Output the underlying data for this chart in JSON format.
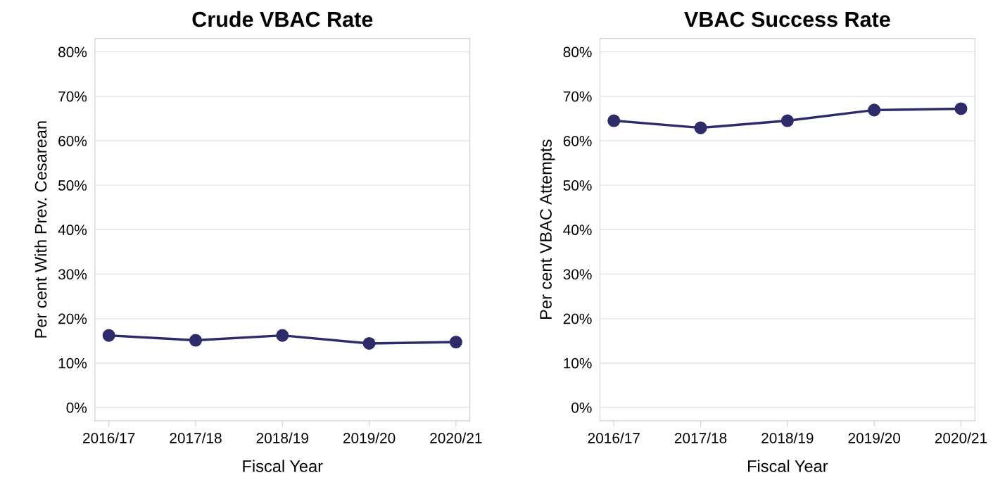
{
  "chart_data": [
    {
      "type": "line",
      "title": "Crude VBAC Rate",
      "xlabel": "Fiscal Year",
      "ylabel": "Per cent With Prev. Cesarean",
      "categories": [
        "2016/17",
        "2017/18",
        "2018/19",
        "2019/20",
        "2020/21"
      ],
      "series": [
        {
          "color": "#2e2b6a",
          "values": [
            16.2,
            15.1,
            16.2,
            14.4,
            14.7
          ]
        }
      ],
      "ylim": [
        -3,
        83
      ],
      "yticks": [
        {
          "value": 0,
          "label": "0%"
        },
        {
          "value": 10,
          "label": "10%"
        },
        {
          "value": 20,
          "label": "20%"
        },
        {
          "value": 30,
          "label": "30%"
        },
        {
          "value": 40,
          "label": "40%"
        },
        {
          "value": 50,
          "label": "50%"
        },
        {
          "value": 60,
          "label": "60%"
        },
        {
          "value": 70,
          "label": "70%"
        },
        {
          "value": 80,
          "label": "80%"
        }
      ],
      "grid": "y",
      "marker": "circle",
      "line_style": "solid"
    },
    {
      "type": "line",
      "title": "VBAC Success Rate",
      "xlabel": "Fiscal Year",
      "ylabel": "Per cent VBAC Attempts",
      "categories": [
        "2016/17",
        "2017/18",
        "2018/19",
        "2019/20",
        "2020/21"
      ],
      "series": [
        {
          "color": "#2e2b6a",
          "values": [
            64.5,
            62.9,
            64.5,
            66.9,
            67.2
          ]
        }
      ],
      "ylim": [
        -3,
        83
      ],
      "yticks": [
        {
          "value": 0,
          "label": "0%"
        },
        {
          "value": 10,
          "label": "10%"
        },
        {
          "value": 20,
          "label": "20%"
        },
        {
          "value": 30,
          "label": "30%"
        },
        {
          "value": 40,
          "label": "40%"
        },
        {
          "value": 50,
          "label": "50%"
        },
        {
          "value": 60,
          "label": "60%"
        },
        {
          "value": 70,
          "label": "70%"
        },
        {
          "value": 80,
          "label": "80%"
        }
      ],
      "grid": "y",
      "marker": "circle",
      "line_style": "solid"
    }
  ]
}
